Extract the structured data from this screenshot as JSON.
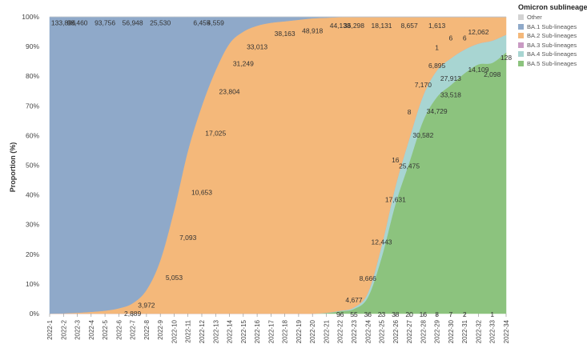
{
  "chart_data": {
    "type": "area",
    "stacked": "percent",
    "ylabel": "Proportion (%)",
    "xlabel": "",
    "ylim": [
      0,
      100
    ],
    "yticks": [
      "0%",
      "10%",
      "20%",
      "30%",
      "40%",
      "50%",
      "60%",
      "70%",
      "80%",
      "90%",
      "100%"
    ],
    "categories": [
      "2022-1",
      "2022-2",
      "2022-3",
      "2022-4",
      "2022-5",
      "2022-6",
      "2022-7",
      "2022-8",
      "2022-9",
      "2022-10",
      "2022-11",
      "2022-12",
      "2022-13",
      "2022-14",
      "2022-15",
      "2022-16",
      "2022-17",
      "2022-18",
      "2022-19",
      "2022-20",
      "2022-21",
      "2022-22",
      "2022-23",
      "2022-24",
      "2022-25",
      "2022-26",
      "2022-27",
      "2022-28",
      "2022-29",
      "2022-30",
      "2022-31",
      "2022-32",
      "2022-33",
      "2022-34"
    ],
    "legend_title": "Omicron sublineages",
    "legend_position": "top-right",
    "series": [
      {
        "name": "BA.5 Sub-lineages",
        "color": "#8cc37e",
        "values": [
          0,
          0,
          0,
          0,
          0,
          0,
          0,
          0,
          0,
          0,
          0,
          0,
          0,
          0,
          0,
          0,
          0,
          0,
          0,
          0,
          0.2,
          0.8,
          1.6,
          5.5,
          19.0,
          37.0,
          51.0,
          65.0,
          73.0,
          77.0,
          81.0,
          84.0,
          84.5,
          88.0
        ]
      },
      {
        "name": "BA.4 Sub-lineages",
        "color": "#a8d5d2",
        "values": [
          0,
          0,
          0,
          0,
          0,
          0,
          0,
          0,
          0,
          0,
          0,
          0,
          0,
          0,
          0,
          0,
          0,
          0,
          0,
          0,
          0.1,
          0.2,
          0.5,
          1.5,
          4.0,
          6.0,
          8.0,
          8.5,
          9.0,
          9.0,
          8.0,
          7.0,
          7.5,
          6.0
        ]
      },
      {
        "name": "BA.3 Sub-lineages",
        "color": "#c99ac3",
        "values": [
          0,
          0,
          0,
          0,
          0,
          0,
          0,
          0,
          0,
          0,
          0,
          0,
          0,
          0,
          0,
          0,
          0,
          0,
          0,
          0,
          0,
          0,
          0,
          0,
          0,
          0,
          0,
          0,
          0,
          0,
          0,
          0,
          0,
          0
        ]
      },
      {
        "name": "BA.2 Sub-lineages",
        "color": "#f4b87a",
        "values": [
          0,
          0.1,
          0.3,
          0.6,
          1.0,
          1.8,
          3.5,
          8.0,
          18.0,
          35.0,
          55.0,
          70.0,
          82.0,
          91.0,
          95.0,
          97.0,
          98.0,
          98.5,
          99.0,
          99.5,
          99.4,
          98.9,
          97.8,
          92.9,
          76.9,
          56.9,
          40.9,
          26.4,
          17.9,
          13.9,
          10.9,
          8.9,
          7.9,
          5.9
        ]
      },
      {
        "name": "BA.1 Sub-lineages",
        "color": "#8fa9c9",
        "values": [
          100,
          99.9,
          99.7,
          99.4,
          99.0,
          98.2,
          96.5,
          92.0,
          82.0,
          65.0,
          45.0,
          30.0,
          18.0,
          9.0,
          5.0,
          3.0,
          2.0,
          1.5,
          1.0,
          0.5,
          0.3,
          0.1,
          0.1,
          0.1,
          0.1,
          0.1,
          0.1,
          0.1,
          0.1,
          0.1,
          0.1,
          0.1,
          0.1,
          0.1
        ]
      },
      {
        "name": "Other",
        "color": "#d3d3d3",
        "values": [
          0,
          0,
          0,
          0,
          0,
          0,
          0,
          0,
          0,
          0,
          0,
          0,
          0,
          0,
          0,
          0,
          0,
          0,
          0,
          0,
          0,
          0,
          0,
          0,
          0,
          0,
          0,
          0,
          0,
          0,
          0,
          0,
          0,
          0
        ]
      }
    ],
    "labels": [
      {
        "text": "133,896",
        "x": "2022-2",
        "y": 98
      },
      {
        "text": "98,460",
        "x": "2022-3",
        "y": 98
      },
      {
        "text": "93,756",
        "x": "2022-5",
        "y": 98
      },
      {
        "text": "56,948",
        "x": "2022-7",
        "y": 98
      },
      {
        "text": "25,530",
        "x": "2022-9",
        "y": 98
      },
      {
        "text": "6,455",
        "x": "2022-12",
        "y": 98
      },
      {
        "text": "4,559",
        "x": "2022-13",
        "y": 98
      },
      {
        "text": "2,889",
        "x": "2022-7",
        "y": 0
      },
      {
        "text": "3,972",
        "x": "2022-8",
        "y": 2.8
      },
      {
        "text": "5,053",
        "x": "2022-10",
        "y": 12.1
      },
      {
        "text": "7,093",
        "x": "2022-11",
        "y": 25.6
      },
      {
        "text": "10,653",
        "x": "2022-12",
        "y": 40.8
      },
      {
        "text": "17,025",
        "x": "2022-13",
        "y": 60.8
      },
      {
        "text": "23,804",
        "x": "2022-14",
        "y": 74.8
      },
      {
        "text": "31,249",
        "x": "2022-15",
        "y": 84.2
      },
      {
        "text": "33,013",
        "x": "2022-16",
        "y": 89.9
      },
      {
        "text": "38,163",
        "x": "2022-18",
        "y": 94.3
      },
      {
        "text": "48,918",
        "x": "2022-20",
        "y": 95.3
      },
      {
        "text": "44,133",
        "x": "2022-22",
        "y": 97.0
      },
      {
        "text": "36,298",
        "x": "2022-23",
        "y": 97.0
      },
      {
        "text": "18,131",
        "x": "2022-25",
        "y": 97.0
      },
      {
        "text": "8,657",
        "x": "2022-27",
        "y": 97.0
      },
      {
        "text": "1,613",
        "x": "2022-29",
        "y": 97.0
      },
      {
        "text": "12,062",
        "x": "2022-32",
        "y": 94.9
      },
      {
        "text": "6",
        "x": "2022-30",
        "y": 92.8
      },
      {
        "text": "6",
        "x": "2022-31",
        "y": 92.8
      },
      {
        "text": "1",
        "x": "2022-29",
        "y": 89.6
      },
      {
        "text": "6,895",
        "x": "2022-29",
        "y": 83.5
      },
      {
        "text": "7,170",
        "x": "2022-28",
        "y": 77.1
      },
      {
        "text": "8",
        "x": "2022-27",
        "y": 67.9
      },
      {
        "text": "16",
        "x": "2022-26",
        "y": 51.8
      },
      {
        "text": "128",
        "x": "2022-34",
        "y": 86.2
      },
      {
        "text": "14,109",
        "x": "2022-32",
        "y": 82.2
      },
      {
        "text": "2,098",
        "x": "2022-33",
        "y": 80.6
      },
      {
        "text": "27,913",
        "x": "2022-30",
        "y": 79.2
      },
      {
        "text": "33,518",
        "x": "2022-30",
        "y": 73.7
      },
      {
        "text": "34,729",
        "x": "2022-29",
        "y": 68.2
      },
      {
        "text": "30,582",
        "x": "2022-28",
        "y": 60.1
      },
      {
        "text": "25,475",
        "x": "2022-27",
        "y": 49.7
      },
      {
        "text": "17,631",
        "x": "2022-26",
        "y": 38.4
      },
      {
        "text": "12,443",
        "x": "2022-25",
        "y": 24.1
      },
      {
        "text": "8,666",
        "x": "2022-24",
        "y": 11.9
      },
      {
        "text": "4,677",
        "x": "2022-23",
        "y": 4.6
      },
      {
        "text": "96",
        "x": "2022-22",
        "y": -0.3
      },
      {
        "text": "55",
        "x": "2022-23",
        "y": -0.3
      },
      {
        "text": "36",
        "x": "2022-24",
        "y": -0.3
      },
      {
        "text": "23",
        "x": "2022-25",
        "y": -0.3
      },
      {
        "text": "38",
        "x": "2022-26",
        "y": -0.3
      },
      {
        "text": "20",
        "x": "2022-27",
        "y": -0.3
      },
      {
        "text": "16",
        "x": "2022-28",
        "y": -0.3
      },
      {
        "text": "8",
        "x": "2022-29",
        "y": -0.3
      },
      {
        "text": "7",
        "x": "2022-30",
        "y": -0.3
      },
      {
        "text": "2",
        "x": "2022-31",
        "y": -0.3
      },
      {
        "text": "1",
        "x": "2022-33",
        "y": -0.3
      }
    ]
  }
}
